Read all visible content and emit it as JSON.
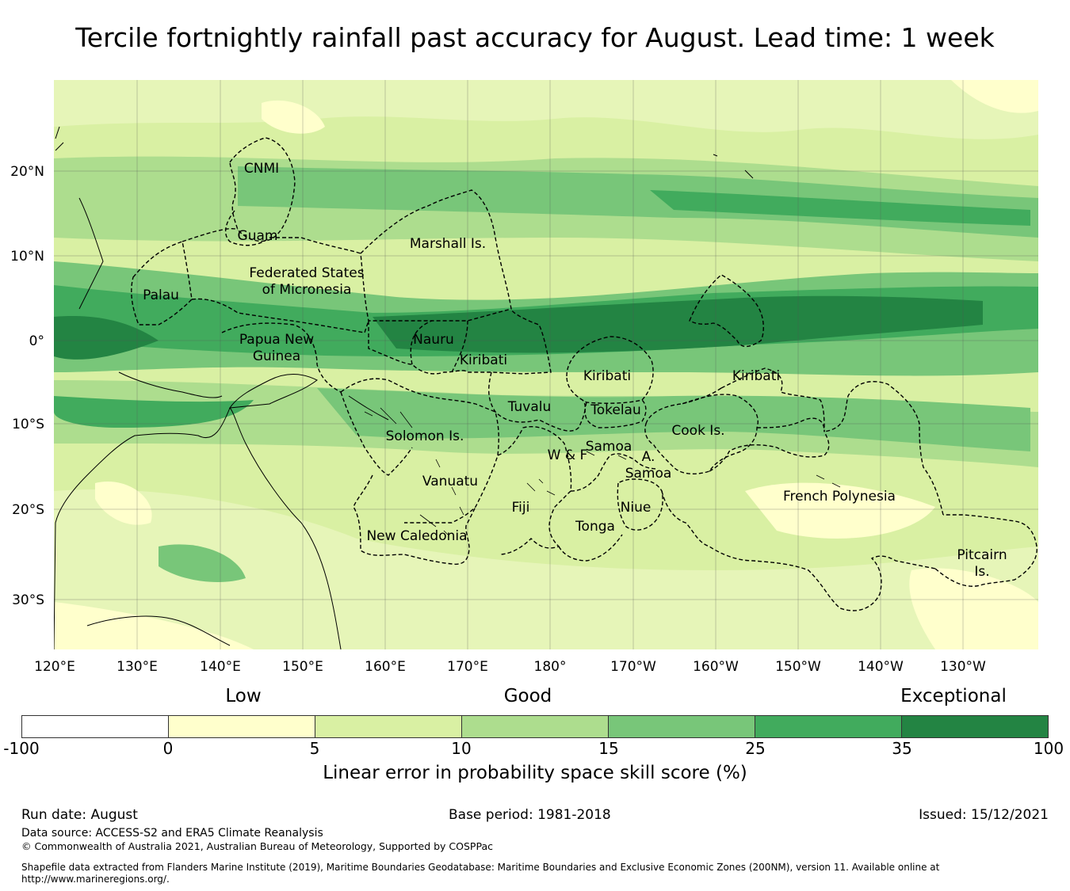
{
  "title": "Tercile fortnightly rainfall past accuracy for August. Lead time: 1 week",
  "map": {
    "lon_labels": [
      "120°E",
      "130°E",
      "140°E",
      "150°E",
      "160°E",
      "170°E",
      "180°",
      "170°W",
      "160°W",
      "150°W",
      "140°W",
      "130°W"
    ],
    "lat_labels": [
      "20°N",
      "10°N",
      "0°",
      "10°S",
      "20°S",
      "30°S"
    ],
    "regions": {
      "cnmi": "CNMI",
      "guam": "Guam",
      "marshall": "Marshall Is.",
      "fsm_1": "Federated States",
      "fsm_2": "of Micronesia",
      "palau": "Palau",
      "png_1": "Papua New",
      "png_2": "Guinea",
      "nauru": "Nauru",
      "kiribati_w": "Kiribati",
      "kiribati_c": "Kiribati",
      "kiribati_e": "Kiribati",
      "tuvalu": "Tuvalu",
      "tokelau": "Tokelau",
      "solomon": "Solomon Is.",
      "samoa": "Samoa",
      "wf": "W & F",
      "as_1": "A.",
      "as_2": "Samoa",
      "cook": "Cook Is.",
      "vanuatu": "Vanuatu",
      "fiji": "Fiji",
      "niue": "Niue",
      "tonga": "Tonga",
      "new_caledonia": "New Caledonia",
      "french_polynesia": "French Polynesia",
      "pitcairn_1": "Pitcairn",
      "pitcairn_2": "Is."
    }
  },
  "legend": {
    "categories": [
      "Low",
      "Good",
      "Exceptional"
    ],
    "ticks": [
      "-100",
      "0",
      "5",
      "10",
      "15",
      "25",
      "35",
      "100"
    ],
    "colors": [
      "#ffffff",
      "#ffffcc",
      "#d9f0a3",
      "#addd8e",
      "#78c679",
      "#41ab5d",
      "#238443"
    ],
    "title": "Linear error in probability space skill score (%)"
  },
  "footer": {
    "run_date": "Run date: August",
    "base_period": "Base period: 1981-2018",
    "issued": "Issued: 15/12/2021",
    "data_source": "Data source: ACCESS-S2 and ERA5 Climate Reanalysis",
    "copyright": "© Commonwealth of Australia 2021, Australian Bureau of Meteorology, Supported by COSPPac",
    "shapefile": "Shapefile data extracted from Flanders Marine Institute (2019), Maritime Boundaries Geodatabase: Maritime Boundaries and Exclusive Economic Zones (200NM), version 11. Available online at http://www.marineregions.org/."
  }
}
